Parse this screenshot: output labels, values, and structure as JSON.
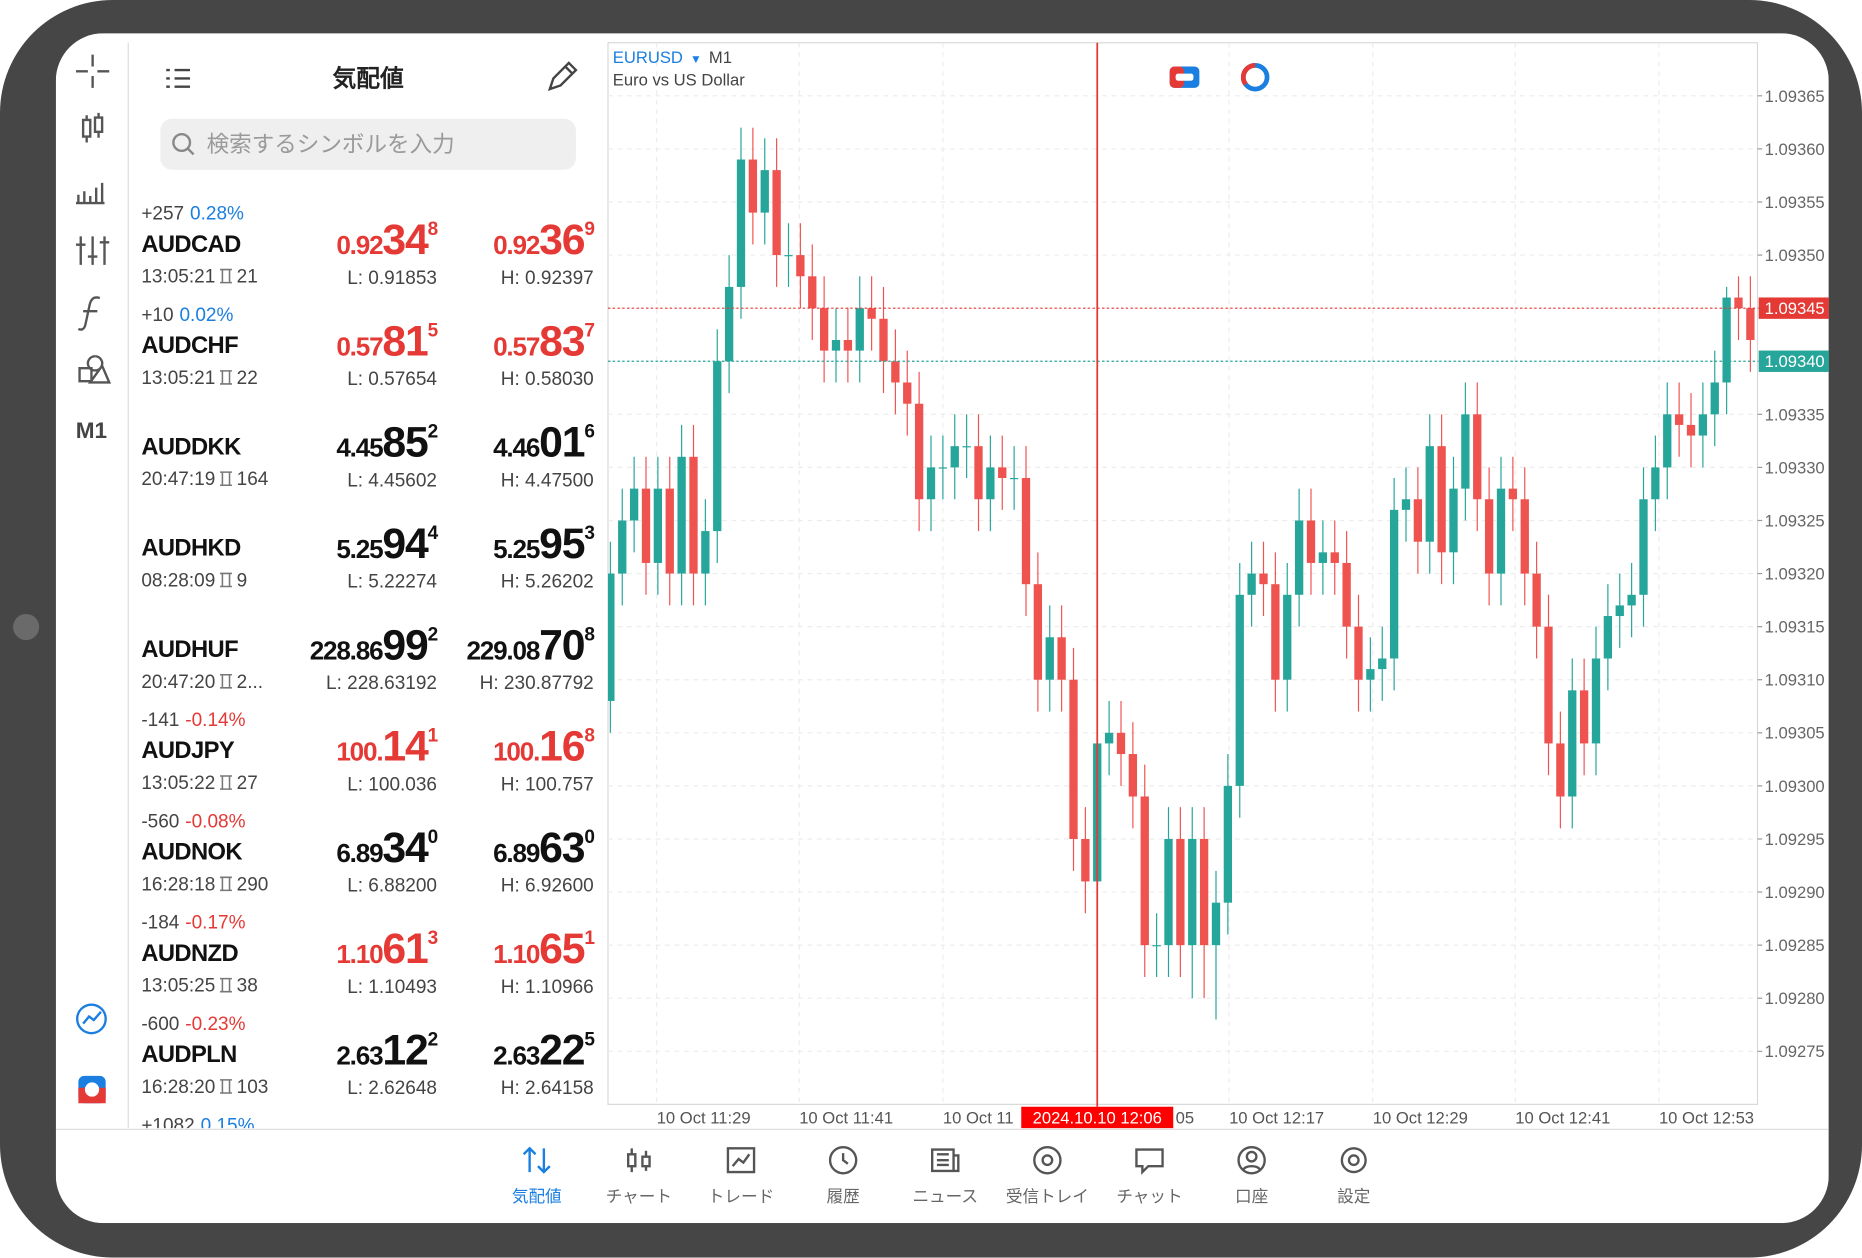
{
  "sidebar": {
    "timeframe": "M1"
  },
  "quotes": {
    "title": "気配値",
    "search_placeholder": "検索するシンボルを入力",
    "rows": [
      {
        "change_points": "+257",
        "change_percent": "0.28%",
        "percent_color": "#1a7fe0",
        "symbol": "AUDCAD",
        "bid": [
          "0.92",
          "34",
          "8"
        ],
        "ask": [
          "0.92",
          "36",
          "9"
        ],
        "price_color": "#e53935",
        "time": "13:05:21",
        "ticks": "21",
        "low": "L: 0.91853",
        "high": "H: 0.92397"
      },
      {
        "change_points": "+10",
        "change_percent": "0.02%",
        "percent_color": "#1a7fe0",
        "symbol": "AUDCHF",
        "bid": [
          "0.57",
          "81",
          "5"
        ],
        "ask": [
          "0.57",
          "83",
          "7"
        ],
        "price_color": "#e53935",
        "time": "13:05:21",
        "ticks": "22",
        "low": "L: 0.57654",
        "high": "H: 0.58030"
      },
      {
        "symbol": "AUDDKK",
        "bid": [
          "4.45",
          "85",
          "2"
        ],
        "ask": [
          "4.46",
          "01",
          "6"
        ],
        "price_color": "#111111",
        "time": "20:47:19",
        "ticks": "164",
        "low": "L: 4.45602",
        "high": "H: 4.47500"
      },
      {
        "symbol": "AUDHKD",
        "bid": [
          "5.25",
          "94",
          "4"
        ],
        "ask": [
          "5.25",
          "95",
          "3"
        ],
        "price_color": "#111111",
        "time": "08:28:09",
        "ticks": "9",
        "low": "L: 5.22274",
        "high": "H: 5.26202"
      },
      {
        "symbol": "AUDHUF",
        "bid": [
          "228.86",
          "99",
          "2"
        ],
        "ask": [
          "229.08",
          "70",
          "8"
        ],
        "price_color": "#111111",
        "time": "20:47:20",
        "ticks": "2...",
        "low": "L: 228.63192",
        "high": "H: 230.87792"
      },
      {
        "change_points": "-141",
        "change_percent": "-0.14%",
        "percent_color": "#e53935",
        "symbol": "AUDJPY",
        "bid": [
          "100.",
          "14",
          "1"
        ],
        "ask": [
          "100.",
          "16",
          "8"
        ],
        "price_color": "#e53935",
        "time": "13:05:22",
        "ticks": "27",
        "low": "L: 100.036",
        "high": "H: 100.757"
      },
      {
        "change_points": "-560",
        "change_percent": "-0.08%",
        "percent_color": "#e53935",
        "symbol": "AUDNOK",
        "bid": [
          "6.89",
          "34",
          "0"
        ],
        "ask": [
          "6.89",
          "63",
          "0"
        ],
        "price_color": "#111111",
        "time": "16:28:18",
        "ticks": "290",
        "low": "L: 6.88200",
        "high": "H: 6.92600"
      },
      {
        "change_points": "-184",
        "change_percent": "-0.17%",
        "percent_color": "#e53935",
        "symbol": "AUDNZD",
        "bid": [
          "1.10",
          "61",
          "3"
        ],
        "ask": [
          "1.10",
          "65",
          "1"
        ],
        "price_color": "#e53935",
        "time": "13:05:25",
        "ticks": "38",
        "low": "L: 1.10493",
        "high": "H: 1.10966"
      },
      {
        "change_points": "-600",
        "change_percent": "-0.23%",
        "percent_color": "#e53935",
        "symbol": "AUDPLN",
        "bid": [
          "2.63",
          "12",
          "2"
        ],
        "ask": [
          "2.63",
          "22",
          "5"
        ],
        "price_color": "#111111",
        "time": "16:28:20",
        "ticks": "103",
        "low": "L: 2.62648",
        "high": "H: 2.64158"
      },
      {
        "change_points": "+1082",
        "change_percent": "0.15%",
        "percent_color": "#1a7fe0"
      }
    ]
  },
  "chart": {
    "symbol": "EURUSD",
    "timeframe": "M1",
    "description": "Euro vs US Dollar",
    "ylim": [
      1.0927,
      1.0937
    ],
    "yticks": [
      1.09365,
      {
        "value": 1.0936,
        "label": "1.09360"
      },
      1.09355,
      {
        "value": 1.0935,
        "label": "1.09350"
      },
      1.09345,
      {
        "value": 1.0934,
        "label": "1.09340"
      },
      1.09335,
      {
        "value": 1.0933,
        "label": "1.09330"
      },
      1.09325,
      {
        "value": 1.0932,
        "label": "1.09320"
      },
      1.09315,
      {
        "value": 1.0931,
        "label": "1.09310"
      },
      1.09305,
      {
        "value": 1.093,
        "label": "1.09300"
      },
      1.09295,
      {
        "value": 1.0929,
        "label": "1.09290"
      },
      1.09285,
      {
        "value": 1.0928,
        "label": "1.09280"
      },
      1.09275
    ],
    "ask": 1.09345,
    "bid": {
      "value": 1.0934,
      "label": "1.09340"
    },
    "up_color": "#26a69a",
    "down_color": "#ef5350",
    "grid": true,
    "time_labels": [
      "10 Oct 11:29",
      "10 Oct 11:41",
      "10 Oct 11",
      "05",
      "10 Oct 12:17",
      "10 Oct 12:29",
      "10 Oct 12:41",
      "10 Oct 12:53"
    ],
    "crosshair_label": "2024.10.10 12:06",
    "candles": [
      [
        1.09308,
        1.09323,
        1.09305,
        1.0932
      ],
      [
        1.0932,
        1.09328,
        1.09317,
        1.09325
      ],
      [
        1.09325,
        1.09331,
        1.09322,
        1.09328
      ],
      [
        1.09328,
        1.09331,
        1.09318,
        1.09321
      ],
      [
        1.09321,
        1.09331,
        1.09318,
        1.09328
      ],
      [
        1.09328,
        1.09331,
        1.09317,
        1.0932
      ],
      [
        1.0932,
        1.09334,
        1.09317,
        1.09331
      ],
      [
        1.09331,
        1.09334,
        1.09317,
        1.0932
      ],
      [
        1.0932,
        1.09327,
        1.09317,
        1.09324
      ],
      [
        1.09324,
        1.09343,
        1.09321,
        1.0934
      ],
      [
        1.0934,
        1.0935,
        1.09337,
        1.09347
      ],
      [
        1.09347,
        1.09362,
        1.09344,
        1.09359
      ],
      [
        1.09359,
        1.09362,
        1.09351,
        1.09354
      ],
      [
        1.09354,
        1.09361,
        1.09351,
        1.09358
      ],
      [
        1.09358,
        1.09361,
        1.09347,
        1.0935
      ],
      [
        1.0935,
        1.09353,
        1.09347,
        1.0935
      ],
      [
        1.0935,
        1.09353,
        1.09345,
        1.09348
      ],
      [
        1.09348,
        1.09351,
        1.09342,
        1.09345
      ],
      [
        1.09345,
        1.09348,
        1.09338,
        1.09341
      ],
      [
        1.09341,
        1.09345,
        1.09338,
        1.09342
      ],
      [
        1.09342,
        1.09345,
        1.09338,
        1.09341
      ],
      [
        1.09341,
        1.09348,
        1.09338,
        1.09345
      ],
      [
        1.09345,
        1.09348,
        1.09341,
        1.09344
      ],
      [
        1.09344,
        1.09347,
        1.09337,
        1.0934
      ],
      [
        1.0934,
        1.09343,
        1.09335,
        1.09338
      ],
      [
        1.09338,
        1.09341,
        1.09333,
        1.09336
      ],
      [
        1.09336,
        1.09339,
        1.09324,
        1.09327
      ],
      [
        1.09327,
        1.09333,
        1.09324,
        1.0933
      ],
      [
        1.0933,
        1.09333,
        1.09327,
        1.0933
      ],
      [
        1.0933,
        1.09335,
        1.09327,
        1.09332
      ],
      [
        1.09332,
        1.09335,
        1.09329,
        1.09332
      ],
      [
        1.09332,
        1.09335,
        1.09324,
        1.09327
      ],
      [
        1.09327,
        1.09333,
        1.09324,
        1.0933
      ],
      [
        1.0933,
        1.09333,
        1.09326,
        1.09329
      ],
      [
        1.09329,
        1.09332,
        1.09326,
        1.09329
      ],
      [
        1.09329,
        1.09332,
        1.09316,
        1.09319
      ],
      [
        1.09319,
        1.09322,
        1.09307,
        1.0931
      ],
      [
        1.0931,
        1.09317,
        1.09307,
        1.09314
      ],
      [
        1.09314,
        1.09317,
        1.09307,
        1.0931
      ],
      [
        1.0931,
        1.09313,
        1.09292,
        1.09295
      ],
      [
        1.09295,
        1.09298,
        1.09288,
        1.09291
      ],
      [
        1.09291,
        1.09307,
        1.09288,
        1.09304
      ],
      [
        1.09304,
        1.09308,
        1.09301,
        1.09305
      ],
      [
        1.09305,
        1.09308,
        1.093,
        1.09303
      ],
      [
        1.09303,
        1.09306,
        1.09296,
        1.09299
      ],
      [
        1.09299,
        1.09302,
        1.09282,
        1.09285
      ],
      [
        1.09285,
        1.09288,
        1.09282,
        1.09285
      ],
      [
        1.09285,
        1.09298,
        1.09282,
        1.09295
      ],
      [
        1.09295,
        1.09298,
        1.09282,
        1.09285
      ],
      [
        1.09285,
        1.09298,
        1.0928,
        1.09295
      ],
      [
        1.09295,
        1.09298,
        1.0928,
        1.09285
      ],
      [
        1.09285,
        1.09292,
        1.09278,
        1.09289
      ],
      [
        1.09289,
        1.09303,
        1.09286,
        1.093
      ],
      [
        1.093,
        1.09321,
        1.09297,
        1.09318
      ],
      [
        1.09318,
        1.09323,
        1.09315,
        1.0932
      ],
      [
        1.0932,
        1.09323,
        1.09316,
        1.09319
      ],
      [
        1.09319,
        1.09322,
        1.09307,
        1.0931
      ],
      [
        1.0931,
        1.09321,
        1.09307,
        1.09318
      ],
      [
        1.09318,
        1.09328,
        1.09315,
        1.09325
      ],
      [
        1.09325,
        1.09328,
        1.09318,
        1.09321
      ],
      [
        1.09321,
        1.09325,
        1.09318,
        1.09322
      ],
      [
        1.09322,
        1.09325,
        1.09318,
        1.09321
      ],
      [
        1.09321,
        1.09324,
        1.09312,
        1.09315
      ],
      [
        1.09315,
        1.09318,
        1.09307,
        1.0931
      ],
      [
        1.0931,
        1.09314,
        1.09307,
        1.09311
      ],
      [
        1.09311,
        1.09315,
        1.09308,
        1.09312
      ],
      [
        1.09312,
        1.09329,
        1.09309,
        1.09326
      ],
      [
        1.09326,
        1.0933,
        1.09323,
        1.09327
      ],
      [
        1.09327,
        1.0933,
        1.0932,
        1.09323
      ],
      [
        1.09323,
        1.09335,
        1.0932,
        1.09332
      ],
      [
        1.09332,
        1.09335,
        1.09319,
        1.09322
      ],
      [
        1.09322,
        1.09331,
        1.09319,
        1.09328
      ],
      [
        1.09328,
        1.09338,
        1.09325,
        1.09335
      ],
      [
        1.09335,
        1.09338,
        1.09324,
        1.09327
      ],
      [
        1.09327,
        1.0933,
        1.09317,
        1.0932
      ],
      [
        1.0932,
        1.09331,
        1.09317,
        1.09328
      ],
      [
        1.09328,
        1.09331,
        1.09324,
        1.09327
      ],
      [
        1.09327,
        1.0933,
        1.09317,
        1.0932
      ],
      [
        1.0932,
        1.09323,
        1.09312,
        1.09315
      ],
      [
        1.09315,
        1.09318,
        1.09301,
        1.09304
      ],
      [
        1.09304,
        1.09307,
        1.09296,
        1.09299
      ],
      [
        1.09299,
        1.09312,
        1.09296,
        1.09309
      ],
      [
        1.09309,
        1.09312,
        1.09301,
        1.09304
      ],
      [
        1.09304,
        1.09315,
        1.09301,
        1.09312
      ],
      [
        1.09312,
        1.09319,
        1.09309,
        1.09316
      ],
      [
        1.09316,
        1.0932,
        1.09313,
        1.09317
      ],
      [
        1.09317,
        1.09321,
        1.09314,
        1.09318
      ],
      [
        1.09318,
        1.0933,
        1.09315,
        1.09327
      ],
      [
        1.09327,
        1.09333,
        1.09324,
        1.0933
      ],
      [
        1.0933,
        1.09338,
        1.09327,
        1.09335
      ],
      [
        1.09335,
        1.09338,
        1.09331,
        1.09334
      ],
      [
        1.09334,
        1.09337,
        1.0933,
        1.09333
      ],
      [
        1.09333,
        1.09338,
        1.0933,
        1.09335
      ],
      [
        1.09335,
        1.09341,
        1.09332,
        1.09338
      ],
      [
        1.09338,
        1.09347,
        1.09335,
        1.09346
      ],
      [
        1.09346,
        1.09348,
        1.09342,
        1.09345
      ],
      [
        1.09345,
        1.09348,
        1.09339,
        1.09342
      ]
    ]
  },
  "tabs": [
    {
      "label": "気配値",
      "active": true
    },
    {
      "label": "チャート",
      "active": false
    },
    {
      "label": "トレード",
      "active": false
    },
    {
      "label": "履歴",
      "active": false
    },
    {
      "label": "ニュース",
      "active": false
    },
    {
      "label": "受信トレイ",
      "active": false
    },
    {
      "label": "チャット",
      "active": false
    },
    {
      "label": "口座",
      "active": false
    },
    {
      "label": "設定",
      "active": false
    }
  ]
}
